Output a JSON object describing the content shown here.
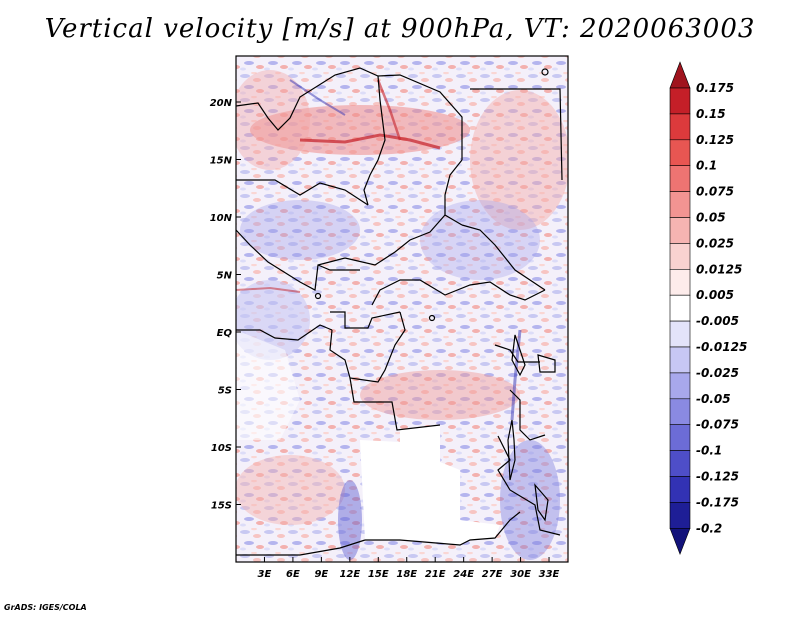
{
  "title": "Vertical velocity [m/s] at 900hPa, VT: 2020063003",
  "credit": "GrADS: IGES/COLA",
  "map": {
    "lon_range": [
      0,
      35
    ],
    "lat_range": [
      -20,
      24
    ],
    "lon_ticks": [
      {
        "lon": 3,
        "label": "3E"
      },
      {
        "lon": 6,
        "label": "6E"
      },
      {
        "lon": 9,
        "label": "9E"
      },
      {
        "lon": 12,
        "label": "12E"
      },
      {
        "lon": 15,
        "label": "15E"
      },
      {
        "lon": 18,
        "label": "18E"
      },
      {
        "lon": 21,
        "label": "21E"
      },
      {
        "lon": 24,
        "label": "24E"
      },
      {
        "lon": 27,
        "label": "27E"
      },
      {
        "lon": 30,
        "label": "30E"
      },
      {
        "lon": 33,
        "label": "33E"
      }
    ],
    "lat_ticks": [
      {
        "lat": 20,
        "label": "20N"
      },
      {
        "lat": 15,
        "label": "15N"
      },
      {
        "lat": 10,
        "label": "10N"
      },
      {
        "lat": 5,
        "label": "5N"
      },
      {
        "lat": 0,
        "label": "EQ"
      },
      {
        "lat": -5,
        "label": "5S"
      },
      {
        "lat": -10,
        "label": "10S"
      },
      {
        "lat": -15,
        "label": "15S"
      }
    ]
  },
  "colorbar": {
    "labels": [
      "0.175",
      "0.15",
      "0.125",
      "0.1",
      "0.075",
      "0.05",
      "0.025",
      "0.0125",
      "0.005",
      "-0.005",
      "-0.0125",
      "-0.025",
      "-0.05",
      "-0.075",
      "-0.1",
      "-0.125",
      "-0.175",
      "-0.2"
    ],
    "colors": [
      "#a0141e",
      "#c41f28",
      "#dc3a3c",
      "#e85652",
      "#ee7472",
      "#f29492",
      "#f6b4b2",
      "#f9d2d0",
      "#fdeceb",
      "#ffffff",
      "#e3e3fa",
      "#c7c7f4",
      "#a8a8ec",
      "#8a8ae2",
      "#6c6cd6",
      "#4e4ec8",
      "#3232b4",
      "#1e1e96",
      "#12127a"
    ]
  }
}
